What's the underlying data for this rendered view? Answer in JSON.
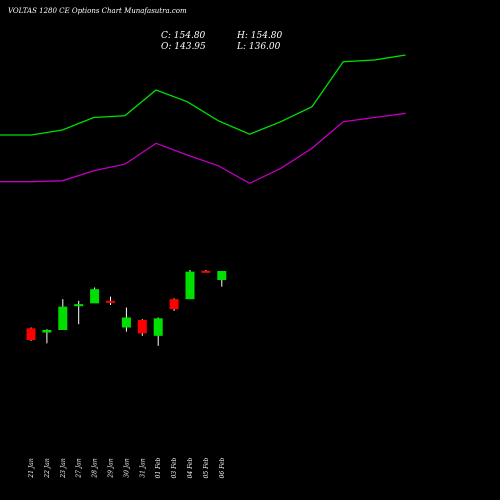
{
  "header": {
    "title": "VOLTAS 1280  CE Options  Chart Munafasutra.com",
    "close": "C: 154.80",
    "high": "H: 154.80",
    "open": "O: 143.95",
    "low": "L: 136.00"
  },
  "chart_data": {
    "type": "candlestick",
    "title": "VOLTAS 1280  CE Options  Chart Munafasutra.com",
    "categories": [
      "21 Jan",
      "22 Jan",
      "23 Jan",
      "27 Jan",
      "28 Jan",
      "29 Jan",
      "30 Jan",
      "31 Jan",
      "01 Feb",
      "03 Feb",
      "04 Feb",
      "05 Feb",
      "06 Feb"
    ],
    "ohlc": [
      {
        "x": "21 Jan",
        "open": 86,
        "high": 87,
        "low": 71,
        "close": 72
      },
      {
        "x": "22 Jan",
        "open": 81,
        "high": 85,
        "low": 68,
        "close": 84
      },
      {
        "x": "23 Jan",
        "open": 84,
        "high": 121,
        "low": 84,
        "close": 112
      },
      {
        "x": "27 Jan",
        "open": 113,
        "high": 119,
        "low": 91,
        "close": 115
      },
      {
        "x": "28 Jan",
        "open": 116,
        "high": 135,
        "low": 116,
        "close": 133
      },
      {
        "x": "29 Jan",
        "open": 119,
        "high": 124,
        "low": 114,
        "close": 117
      },
      {
        "x": "30 Jan",
        "open": 87,
        "high": 111,
        "low": 82,
        "close": 99
      },
      {
        "x": "31 Jan",
        "open": 96,
        "high": 97,
        "low": 77,
        "close": 80
      },
      {
        "x": "01 Feb",
        "open": 77,
        "high": 99,
        "low": 65,
        "close": 98
      },
      {
        "x": "03 Feb",
        "open": 121,
        "high": 122,
        "low": 107,
        "close": 109
      },
      {
        "x": "04 Feb",
        "open": 121,
        "high": 156,
        "low": 121,
        "close": 154
      },
      {
        "x": "05 Feb",
        "open": 155,
        "high": 156,
        "low": 153,
        "close": 153
      },
      {
        "x": "06 Feb",
        "open": 143.95,
        "high": 154.8,
        "low": 136.0,
        "close": 154.8
      }
    ],
    "bands": [
      {
        "color": "#00e000",
        "values": [
          318,
          318,
          324,
          339,
          341,
          372,
          358,
          335,
          319,
          334,
          352,
          406,
          408,
          414
        ]
      },
      {
        "color": "#c000c0",
        "values": [
          262,
          262,
          263,
          275,
          283,
          308,
          294,
          281,
          260,
          278,
          302,
          334,
          339,
          344
        ]
      }
    ],
    "colors": {
      "up": "#00e000",
      "down": "#ff0000",
      "background": "#000000"
    },
    "ylim": [
      -120,
      480
    ],
    "grid": false
  }
}
